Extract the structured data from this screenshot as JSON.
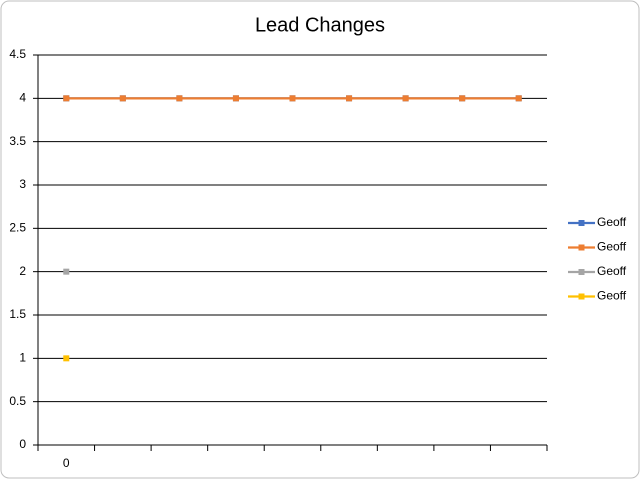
{
  "chart_data": {
    "type": "line",
    "title": "Lead Changes",
    "categories": [
      "0",
      null,
      null,
      null,
      null,
      null,
      null,
      null,
      null
    ],
    "series": [
      {
        "name": "Geoff",
        "color": "#4472c4",
        "values": [
          4,
          4,
          4,
          4,
          4,
          4,
          4,
          4,
          4
        ]
      },
      {
        "name": "Geoff",
        "color": "#ed7d31",
        "values": [
          4,
          4,
          4,
          4,
          4,
          4,
          4,
          4,
          4
        ]
      },
      {
        "name": "Geoff",
        "color": "#a5a5a5",
        "values": [
          2,
          null,
          null,
          null,
          null,
          null,
          null,
          null,
          null
        ]
      },
      {
        "name": "Geoff",
        "color": "#ffc000",
        "values": [
          1,
          null,
          null,
          null,
          null,
          null,
          null,
          null,
          null
        ]
      }
    ],
    "ylim": [
      0,
      4.5
    ],
    "yticks": [
      0,
      0.5,
      1,
      1.5,
      2,
      2.5,
      3,
      3.5,
      4,
      4.5
    ],
    "grid": true,
    "legend": "right"
  }
}
